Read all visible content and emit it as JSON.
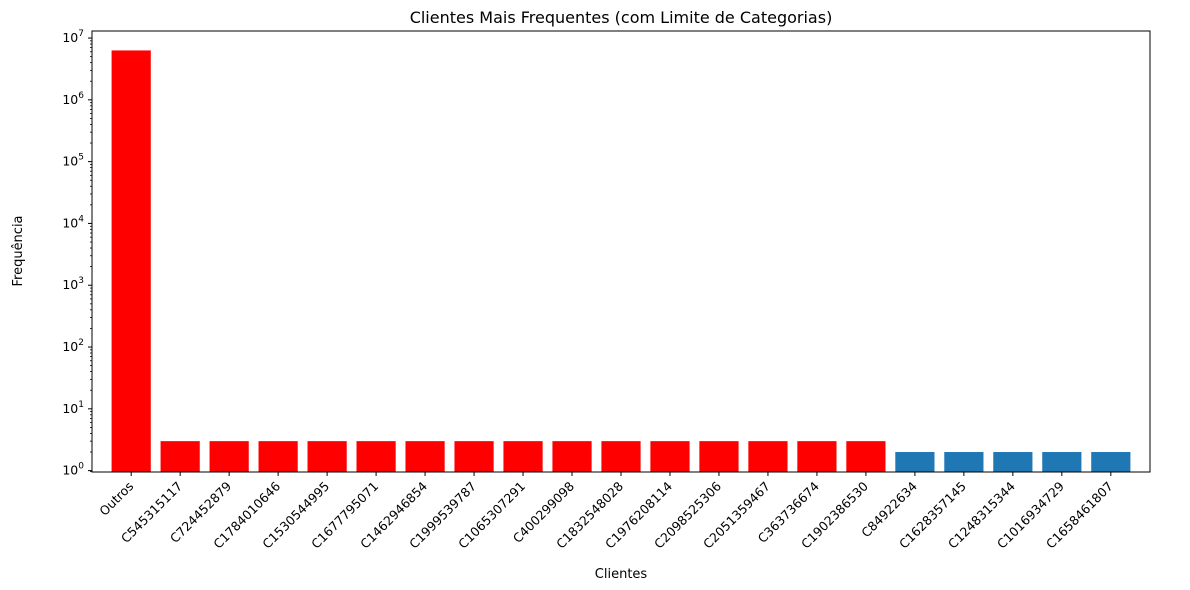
{
  "chart_data": {
    "type": "bar",
    "title": "Clientes Mais Frequentes (com Limite de Categorias)",
    "xlabel": "Clientes",
    "ylabel": "Frequência",
    "yscale": "log",
    "ylim": [
      0.95,
      13000000
    ],
    "yticks": [
      {
        "value": 1,
        "base": "10",
        "exp": "0"
      },
      {
        "value": 10,
        "base": "10",
        "exp": "1"
      },
      {
        "value": 100,
        "base": "10",
        "exp": "2"
      },
      {
        "value": 1000,
        "base": "10",
        "exp": "3"
      },
      {
        "value": 10000,
        "base": "10",
        "exp": "4"
      },
      {
        "value": 100000,
        "base": "10",
        "exp": "5"
      },
      {
        "value": 1000000,
        "base": "10",
        "exp": "6"
      },
      {
        "value": 10000000,
        "base": "10",
        "exp": "7"
      }
    ],
    "grid": false,
    "categories": [
      "Outros",
      "C545315117",
      "C724452879",
      "C1784010646",
      "C1530544995",
      "C1677795071",
      "C1462946854",
      "C1999539787",
      "C1065307291",
      "C400299098",
      "C1832548028",
      "C1976208114",
      "C2098525306",
      "C2051359467",
      "C363736674",
      "C1902386530",
      "C84922634",
      "C1628357145",
      "C1248315344",
      "C1016934729",
      "C1658461807"
    ],
    "values": [
      6300000,
      3,
      3,
      3,
      3,
      3,
      3,
      3,
      3,
      3,
      3,
      3,
      3,
      3,
      3,
      3,
      2,
      2,
      2,
      2,
      2
    ],
    "colors": [
      "#ff0000",
      "#ff0000",
      "#ff0000",
      "#ff0000",
      "#ff0000",
      "#ff0000",
      "#ff0000",
      "#ff0000",
      "#ff0000",
      "#ff0000",
      "#ff0000",
      "#ff0000",
      "#ff0000",
      "#ff0000",
      "#ff0000",
      "#ff0000",
      "#1f77b4",
      "#1f77b4",
      "#1f77b4",
      "#1f77b4",
      "#1f77b4"
    ]
  }
}
